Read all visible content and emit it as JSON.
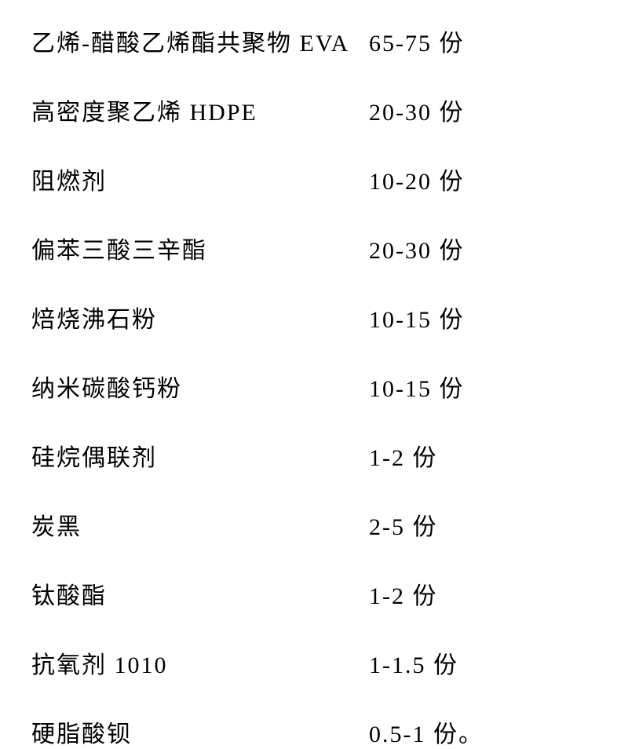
{
  "document": {
    "type": "table",
    "font_family": "SimSun",
    "font_size": 30,
    "text_color": "#000000",
    "background_color": "#ffffff",
    "row_spacing": 44,
    "label_column_width": 430,
    "letter_spacing": 2,
    "rows": [
      {
        "label": "乙烯-醋酸乙烯酯共聚物 EVA",
        "value": "65-75 份"
      },
      {
        "label": "高密度聚乙烯 HDPE",
        "value": "20-30 份"
      },
      {
        "label": "阻燃剂",
        "value": "10-20 份"
      },
      {
        "label": "偏苯三酸三辛酯",
        "value": "20-30 份"
      },
      {
        "label": "焙烧沸石粉",
        "value": "10-15 份"
      },
      {
        "label": "纳米碳酸钙粉",
        "value": "10-15 份"
      },
      {
        "label": "硅烷偶联剂",
        "value": "1-2 份"
      },
      {
        "label": "炭黑",
        "value": "2-5 份"
      },
      {
        "label": "钛酸酯",
        "value": "1-2 份"
      },
      {
        "label": "抗氧剂 1010",
        "value": "1-1.5 份"
      },
      {
        "label": "硬脂酸钡",
        "value": "0.5-1 份。"
      }
    ]
  }
}
